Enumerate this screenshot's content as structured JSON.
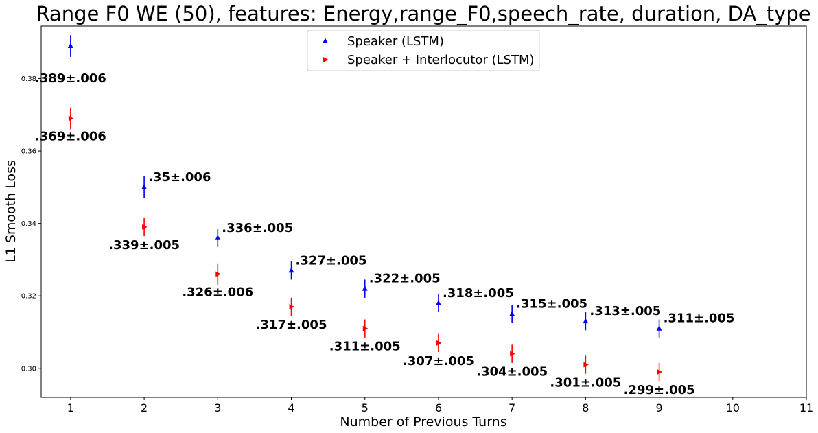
{
  "chart_data": {
    "type": "scatter",
    "title": "Range F0 WE (50), features: Energy,range_F0,speech_rate, duration, DA_type",
    "xlabel": "Number of Previous Turns",
    "ylabel": "L1 Smooth Loss",
    "xlim": [
      0.6,
      11
    ],
    "ylim": [
      0.292,
      0.3945
    ],
    "xticks": [
      "1",
      "2",
      "3",
      "4",
      "5",
      "6",
      "7",
      "8",
      "9",
      "10",
      "11"
    ],
    "yticks": [
      "0.30",
      "0.32",
      "0.34",
      "0.36",
      "0.38"
    ],
    "grid": false,
    "legend_position": "top-center",
    "x": [
      1,
      2,
      3,
      4,
      5,
      6,
      7,
      8,
      9
    ],
    "series": [
      {
        "name": "Speaker (LSTM)",
        "marker": "triangle-up",
        "color": "#0000ff",
        "values": [
          0.389,
          0.35,
          0.336,
          0.327,
          0.322,
          0.318,
          0.315,
          0.313,
          0.311
        ],
        "errors": [
          0.003,
          0.003,
          0.0025,
          0.0025,
          0.0025,
          0.0025,
          0.0025,
          0.0025,
          0.0025
        ],
        "labels": [
          ".389±.006",
          ".35±.006",
          ".336±.005",
          ".327±.005",
          ".322±.005",
          ".318±.005",
          ".315±.005",
          ".313±.005",
          ".311±.005"
        ]
      },
      {
        "name": "Speaker + Interlocutor (LSTM)",
        "marker": "triangle-right",
        "color": "#ff0000",
        "values": [
          0.369,
          0.339,
          0.326,
          0.317,
          0.311,
          0.307,
          0.304,
          0.301,
          0.299
        ],
        "errors": [
          0.003,
          0.0025,
          0.003,
          0.0025,
          0.0025,
          0.0025,
          0.0025,
          0.0025,
          0.0025
        ],
        "labels": [
          ".369±.006",
          ".339±.005",
          ".326±.006",
          ".317±.005",
          ".311±.005",
          ".307±.005",
          ".304±.005",
          ".301±.005",
          ".299±.005"
        ]
      }
    ]
  }
}
